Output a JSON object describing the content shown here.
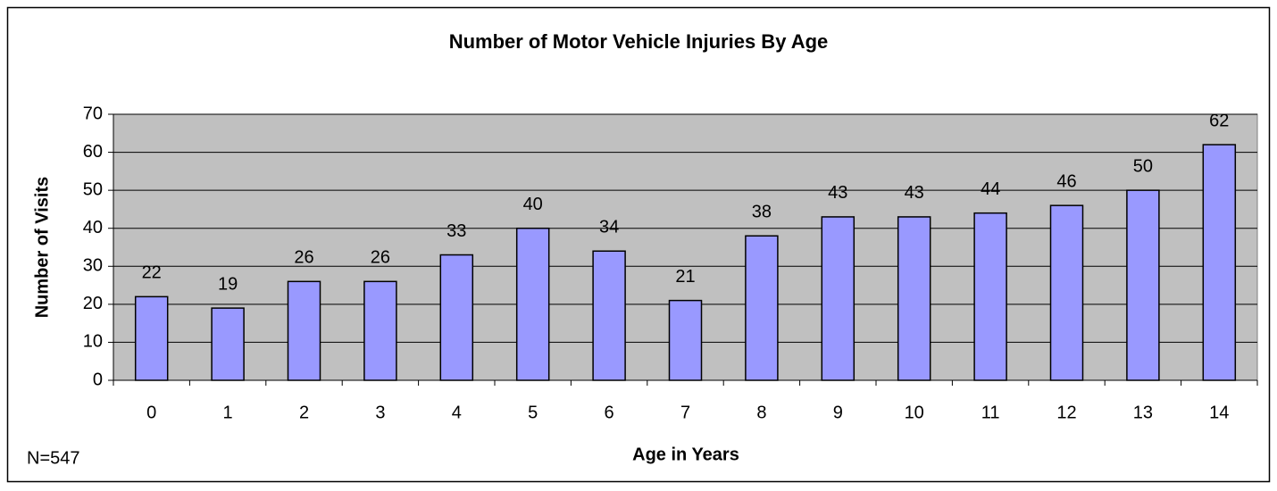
{
  "chart_data": {
    "type": "bar",
    "title": "Number of Motor Vehicle Injuries By Age",
    "x_label": "Age in Years",
    "y_label": "Number of Visits",
    "annotation": "N=547",
    "categories": [
      "0",
      "1",
      "2",
      "3",
      "4",
      "5",
      "6",
      "7",
      "8",
      "9",
      "10",
      "11",
      "12",
      "13",
      "14"
    ],
    "values": [
      22,
      19,
      26,
      26,
      33,
      40,
      34,
      21,
      38,
      43,
      43,
      44,
      46,
      50,
      62
    ],
    "color": "#9999ff",
    "plot_background": "#c0c0c0",
    "ylim": [
      0,
      70
    ],
    "yticks": [
      0,
      10,
      20,
      30,
      40,
      50,
      60,
      70
    ],
    "grid": true
  }
}
